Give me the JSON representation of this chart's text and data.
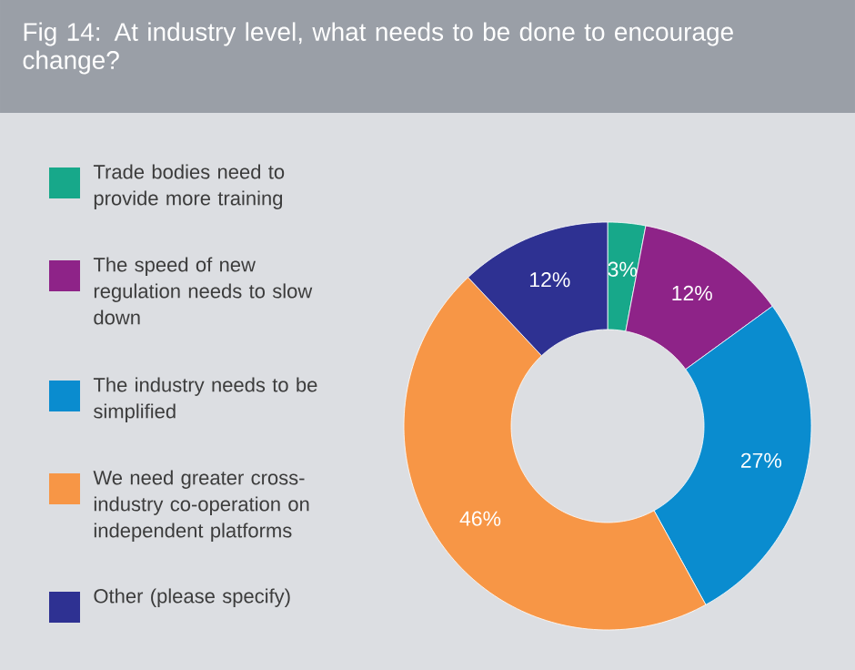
{
  "chart_data": {
    "type": "donut",
    "title": "Fig 14: At  industry level, what needs to be done to encourage change?",
    "categories": [
      "Trade bodies need to provide more training",
      "The speed of new regulation needs to slow down",
      "The industry needs to be simplified",
      "We need greater cross-industry co-operation on independent platforms",
      "Other (please specify)"
    ],
    "values": [
      3,
      12,
      27,
      46,
      12
    ],
    "value_labels": [
      "3%",
      "12%",
      "27%",
      "46%",
      "12%"
    ],
    "colors": [
      "#17a88a",
      "#8e2388",
      "#0a8ccf",
      "#f79646",
      "#2e3192"
    ],
    "legend": "left"
  }
}
